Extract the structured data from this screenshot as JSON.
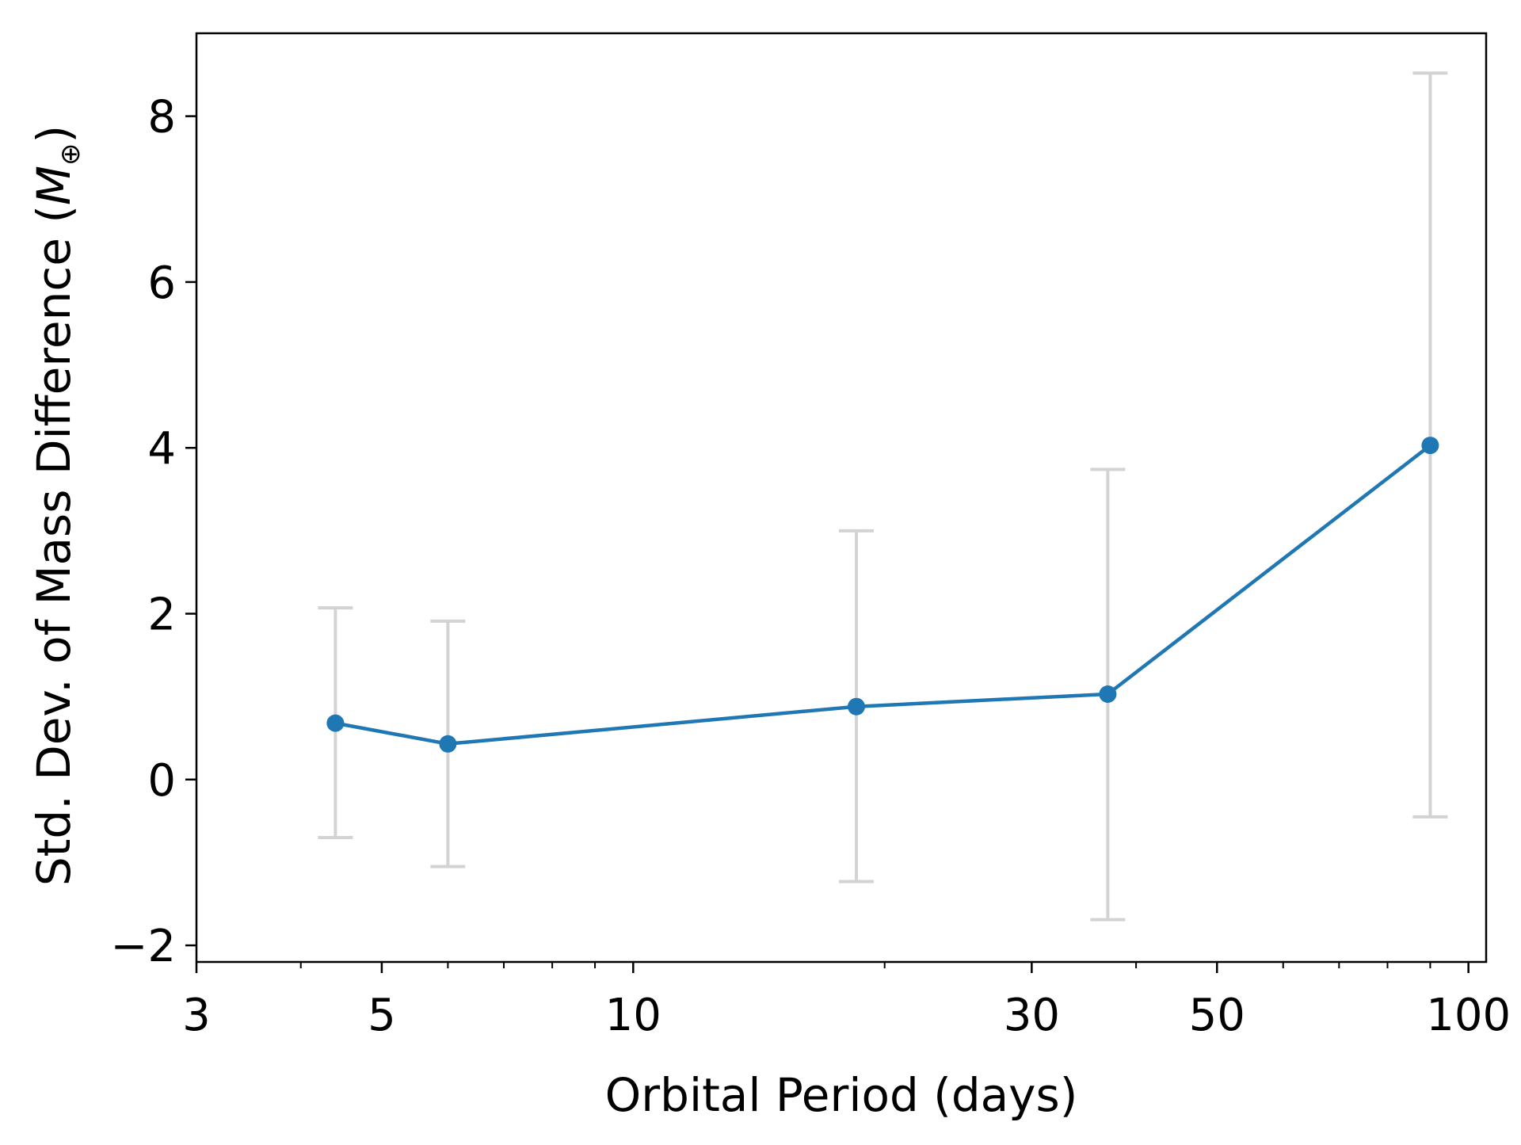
{
  "chart_data": {
    "type": "scatter",
    "title": "",
    "xlabel": "Orbital Period (days)",
    "ylabel_main": "Std. Dev. of Mass Difference (",
    "ylabel_symbol": "M",
    "ylabel_sub": "⊕",
    "ylabel_close": ")",
    "xscale": "log",
    "xlim": [
      3,
      105
    ],
    "ylim": [
      -2.2,
      9.0
    ],
    "grid": false,
    "legend": "none",
    "xticks": [
      {
        "value": 3,
        "label": "3"
      },
      {
        "value": 5,
        "label": "5"
      },
      {
        "value": 10,
        "label": "10"
      },
      {
        "value": 30,
        "label": "30"
      },
      {
        "value": 50,
        "label": "50"
      },
      {
        "value": 100,
        "label": "100"
      }
    ],
    "xminorticks": [
      4,
      6,
      7,
      8,
      9,
      20,
      40,
      60,
      70,
      80,
      90
    ],
    "yticks": [
      {
        "value": -2,
        "label": "−2"
      },
      {
        "value": 0,
        "label": "0"
      },
      {
        "value": 2,
        "label": "2"
      },
      {
        "value": 4,
        "label": "4"
      },
      {
        "value": 6,
        "label": "6"
      },
      {
        "value": 8,
        "label": "8"
      }
    ],
    "series": [
      {
        "x": [
          4.4,
          6.0,
          18.5,
          37.0,
          90.0
        ],
        "y": [
          0.68,
          0.43,
          0.88,
          1.03,
          4.03
        ],
        "yerr_low": [
          -0.7,
          -1.05,
          -1.23,
          -1.69,
          -0.45
        ],
        "yerr_high": [
          2.07,
          1.91,
          3.0,
          3.74,
          8.52
        ],
        "color": "#1f77b4",
        "errorbar_color": "#d3d3d3"
      }
    ]
  }
}
